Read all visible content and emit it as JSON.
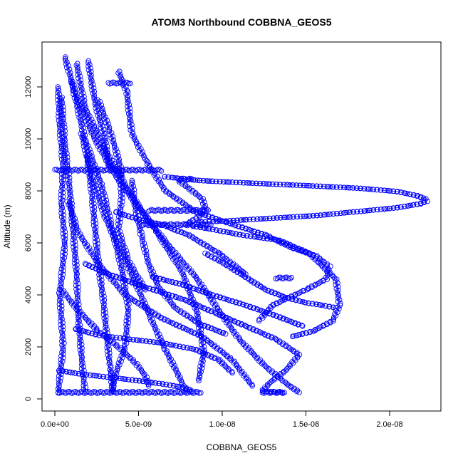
{
  "chart_data": {
    "type": "scatter",
    "title": "ATOM3 Northbound COBBNA_GEOS5",
    "xlabel": "COBBNA_GEOS5",
    "ylabel": "Altitude (m)",
    "xlim": [
      -4e-10,
      2.32e-08
    ],
    "ylim": [
      -400,
      13700
    ],
    "x_ticks": [
      0,
      5e-09,
      1e-08,
      1.5e-08,
      2e-08
    ],
    "x_tick_labels": [
      "0.0e+00",
      "5.0e-09",
      "1.0e-08",
      "1.5e-08",
      "2.0e-08"
    ],
    "y_ticks": [
      0,
      2000,
      4000,
      6000,
      8000,
      10000,
      12000
    ],
    "y_tick_labels": [
      "0",
      "2000",
      "4000",
      "6000",
      "8000",
      "10000",
      "12000"
    ],
    "marker": "open-circle",
    "series_color": "#0000ff",
    "grid": false,
    "legend": "none",
    "series": [
      {
        "x": [
          6e-10,
          1.2e-09,
          2.3e-09,
          3.6e-09,
          5.2e-09,
          6.8e-09,
          8.4e-09,
          9.8e-09,
          1.1e-08,
          1.25e-08,
          1.38e-08,
          1.46e-08
        ],
        "y": [
          13150,
          11800,
          10100,
          8600,
          7200,
          5900,
          4700,
          3400,
          2300,
          1300,
          600,
          250
        ]
      },
      {
        "x": [
          1.3e-09,
          1.8e-09,
          3e-09,
          4.4e-09,
          6e-09,
          7.6e-09,
          8.5e-09,
          8.9e-09,
          8.6e-09
        ],
        "y": [
          12900,
          11200,
          9600,
          8000,
          6500,
          4900,
          3300,
          1800,
          700
        ]
      },
      {
        "x": [
          3.8e-09,
          4.3e-09,
          4.6e-09,
          5.5e-09,
          6.6e-09,
          8.4e-09,
          1.02e-08,
          1.26e-08,
          1.42e-08,
          1.56e-08,
          1.64e-08,
          1.62e-08,
          1.5e-08,
          1.3e-08,
          1.22e-08
        ],
        "y": [
          12600,
          11800,
          10200,
          9100,
          8000,
          7200,
          6800,
          6300,
          5800,
          5500,
          5100,
          4600,
          4200,
          3600,
          3000
        ]
      },
      {
        "x": [
          6.5e-09,
          8.6e-09,
          1.1e-08,
          1.34e-08,
          1.58e-08,
          1.82e-08,
          2.04e-08,
          2.16e-08,
          2.21e-08,
          2.22e-08,
          2.18e-08,
          2.04e-08,
          1.8e-08,
          1.56e-08,
          1.3e-08,
          1.04e-08,
          8.6e-09
        ],
        "y": [
          8550,
          8400,
          8320,
          8250,
          8180,
          8100,
          7980,
          7820,
          7700,
          7600,
          7500,
          7350,
          7200,
          7050,
          6950,
          6850,
          6800
        ]
      },
      {
        "x": [
          7.4e-09,
          8e-09,
          8.8e-09,
          9e-09,
          8.6e-09,
          7.8e-09
        ],
        "y": [
          8400,
          8100,
          7700,
          7300,
          7000,
          6700
        ]
      },
      {
        "x": [
          8.2e-09,
          9.6e-09,
          1.12e-08,
          1.34e-08,
          1.52e-08,
          1.68e-08,
          1.7e-08,
          1.66e-08,
          1.54e-08,
          1.42e-08
        ],
        "y": [
          6650,
          6500,
          6300,
          6100,
          5600,
          4600,
          3600,
          3000,
          2600,
          2400
        ]
      },
      {
        "x": [
          1.8e-09,
          3.2e-09,
          5.4e-09,
          7.8e-09,
          9.6e-09,
          1.14e-08,
          1.32e-08,
          1.46e-08,
          1.38e-08,
          1.28e-08,
          1.24e-08,
          1.36e-08
        ],
        "y": [
          5200,
          4800,
          4300,
          3800,
          3300,
          2800,
          2300,
          1700,
          1100,
          600,
          300,
          250
        ]
      },
      {
        "x": [
          2e-10,
          3e-10,
          5e-10,
          4e-10,
          6e-10,
          3e-10,
          5e-10,
          2e-10
        ],
        "y": [
          12000,
          10500,
          9000,
          7500,
          6000,
          4000,
          2000,
          250
        ]
      },
      {
        "x": [
          1e-09,
          1.8e-09,
          2.8e-09,
          3.4e-09,
          4e-09,
          4.4e-09,
          4.2e-09,
          3.6e-09,
          3.4e-09
        ],
        "y": [
          12200,
          10000,
          8200,
          6600,
          5000,
          3500,
          2000,
          900,
          300
        ]
      },
      {
        "x": [
          1.6e-09,
          2.2e-09,
          3e-09,
          4e-09,
          5e-09,
          5.8e-09,
          6.6e-09,
          7.4e-09,
          7.8e-09
        ],
        "y": [
          10200,
          8600,
          7000,
          5600,
          4200,
          3000,
          1900,
          900,
          300
        ]
      },
      {
        "x": [
          8e-10,
          1.4e-09,
          2.6e-09,
          4.2e-09,
          6.4e-09,
          8.8e-09,
          1.06e-08,
          1.18e-08
        ],
        "y": [
          7600,
          6400,
          5200,
          4000,
          3100,
          2400,
          1500,
          500
        ]
      },
      {
        "x": [
          4e-10,
          1.4e-09,
          2.6e-09,
          3.8e-09,
          4.8e-09,
          5.4e-09,
          5.6e-09
        ],
        "y": [
          4200,
          3400,
          2600,
          2000,
          1400,
          900,
          500
        ]
      },
      {
        "x": [
          2.6e-09,
          3.3e-09,
          3.9e-09,
          4e-09,
          3.8e-09,
          4.4e-09,
          5.4e-09
        ],
        "y": [
          11500,
          10300,
          9000,
          7800,
          6500,
          5300,
          4200
        ]
      },
      {
        "x": [
          9e-09,
          1.04e-08,
          1.16e-08,
          1.26e-08,
          1.38e-08,
          1.5e-08,
          1.6e-08,
          1.68e-08
        ],
        "y": [
          5600,
          5100,
          4600,
          4200,
          3900,
          3700,
          3600,
          3500
        ]
      },
      {
        "x": [
          4.6e-09,
          4.8e-09,
          5.2e-09,
          5.6e-09,
          6.2e-09,
          7.2e-09,
          8.6e-09,
          1.02e-08
        ],
        "y": [
          8400,
          7400,
          6200,
          5200,
          4300,
          3500,
          2900,
          2500
        ]
      },
      {
        "x": [
          4e-10,
          6e-10,
          9e-10,
          1.1e-09,
          1.3e-09,
          1.4e-09,
          1.6e-09,
          1.8e-09
        ],
        "y": [
          11600,
          9800,
          8000,
          6400,
          4800,
          3200,
          1600,
          300
        ]
      },
      {
        "x": [
          1.9e-09,
          2.2e-09,
          2.4e-09,
          2.6e-09,
          2.9e-09,
          3.1e-09,
          3.3e-09,
          3.5e-09
        ],
        "y": [
          9400,
          8000,
          6600,
          5200,
          3800,
          2400,
          1200,
          300
        ]
      },
      {
        "x": [
          3.6e-09,
          5e-09,
          6.4e-09,
          8e-09,
          9.8e-09,
          1.14e-08
        ],
        "y": [
          7200,
          6900,
          6700,
          6300,
          5600,
          4800
        ]
      },
      {
        "x": [
          1.2e-09,
          2.6e-09,
          4.4e-09,
          6.4e-09,
          8.4e-09,
          9.8e-09,
          1.06e-08
        ],
        "y": [
          2700,
          2450,
          2300,
          2150,
          1900,
          1500,
          1000
        ]
      },
      {
        "x": [
          2e-10,
          1.6e-09,
          3.4e-09,
          5e-09,
          6.6e-09,
          7.8e-09,
          8.2e-09
        ],
        "y": [
          1100,
          950,
          820,
          700,
          560,
          420,
          300
        ]
      },
      {
        "x": [
          5.8e-09,
          7.6e-09,
          9.4e-09,
          1.14e-08,
          1.32e-08,
          1.48e-08
        ],
        "y": [
          4700,
          4400,
          4000,
          3600,
          3200,
          2800
        ]
      },
      {
        "x": [
          2e-09,
          2.4e-09,
          3e-09,
          3.2e-09,
          3.6e-09,
          4e-09
        ],
        "y": [
          13000,
          11400,
          10000,
          9000,
          8800,
          8600
        ]
      }
    ],
    "hlines": [
      {
        "x1": 0.0,
        "x2": 6.4e-09,
        "y": 8800
      },
      {
        "x1": 3.2e-09,
        "x2": 4.6e-09,
        "y": 12150
      },
      {
        "x1": 5.2e-09,
        "x2": 9.4e-09,
        "y": 6700
      },
      {
        "x1": 5.6e-09,
        "x2": 9.2e-09,
        "y": 7250
      },
      {
        "x1": 7.4e-09,
        "x2": 8.2e-09,
        "y": 8450
      },
      {
        "x1": 1.24e-08,
        "x2": 1.38e-08,
        "y": 250
      },
      {
        "x1": 2e-10,
        "x2": 8.8e-09,
        "y": 250
      },
      {
        "x1": 1.32e-08,
        "x2": 1.42e-08,
        "y": 4650
      }
    ]
  }
}
